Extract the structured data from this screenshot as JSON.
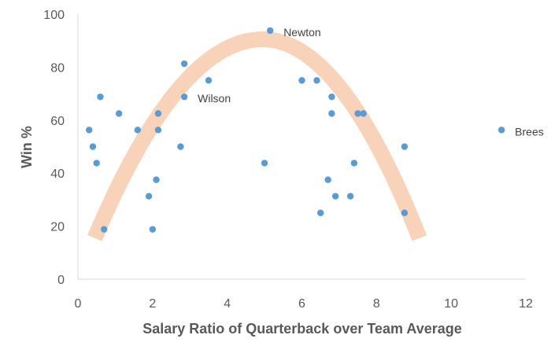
{
  "chart_data": {
    "type": "scatter",
    "title": "",
    "xlabel": "Salary Ratio of Quarterback over Team Average",
    "ylabel": "Win %",
    "xlim": [
      0,
      12
    ],
    "ylim": [
      0,
      100
    ],
    "xticks": [
      0,
      2,
      4,
      6,
      8,
      10,
      12
    ],
    "yticks": [
      0,
      20,
      40,
      60,
      80,
      100
    ],
    "grid": false,
    "legend": "none",
    "marker_color": "#5b9bd5",
    "trend_color": "#f8cbad",
    "points": [
      {
        "x": 0.3,
        "y": 56.3
      },
      {
        "x": 0.4,
        "y": 50
      },
      {
        "x": 0.5,
        "y": 43.8
      },
      {
        "x": 0.6,
        "y": 68.8
      },
      {
        "x": 0.7,
        "y": 18.8
      },
      {
        "x": 1.1,
        "y": 62.5
      },
      {
        "x": 1.6,
        "y": 56.3
      },
      {
        "x": 1.9,
        "y": 31.3
      },
      {
        "x": 2.0,
        "y": 18.8
      },
      {
        "x": 2.1,
        "y": 37.5
      },
      {
        "x": 2.15,
        "y": 56.3
      },
      {
        "x": 2.15,
        "y": 62.5
      },
      {
        "x": 2.75,
        "y": 50
      },
      {
        "x": 2.85,
        "y": 81.3
      },
      {
        "x": 2.85,
        "y": 68.8
      },
      {
        "x": 3.5,
        "y": 75
      },
      {
        "x": 5.0,
        "y": 43.8
      },
      {
        "x": 5.15,
        "y": 93.8
      },
      {
        "x": 6.0,
        "y": 75
      },
      {
        "x": 6.4,
        "y": 75
      },
      {
        "x": 6.5,
        "y": 25
      },
      {
        "x": 6.7,
        "y": 37.5
      },
      {
        "x": 6.8,
        "y": 68.8
      },
      {
        "x": 6.8,
        "y": 62.5
      },
      {
        "x": 6.9,
        "y": 31.3
      },
      {
        "x": 7.3,
        "y": 31.3
      },
      {
        "x": 7.4,
        "y": 43.8
      },
      {
        "x": 7.5,
        "y": 62.5
      },
      {
        "x": 7.65,
        "y": 62.5
      },
      {
        "x": 8.75,
        "y": 50
      },
      {
        "x": 8.75,
        "y": 25
      },
      {
        "x": 11.35,
        "y": 56.3
      }
    ],
    "annotations": [
      {
        "text": "Newton",
        "x": 5.15,
        "y": 93.8
      },
      {
        "text": "Wilson",
        "x": 2.85,
        "y": 68.8
      },
      {
        "text": "Brees",
        "x": 11.35,
        "y": 56.3
      }
    ],
    "trend_curve": {
      "kind": "quadratic-band",
      "description": "hand-drawn arc",
      "x_start": 0.45,
      "x_end": 9.15,
      "peak_x": 4.95,
      "peak_y": 90.5,
      "end_y": 15.5
    }
  }
}
